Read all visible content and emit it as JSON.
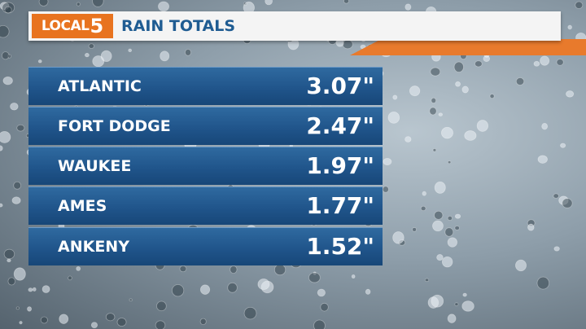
{
  "header": {
    "logo_text": "LOCAL",
    "logo_number": "5",
    "title": "RAIN TOTALS"
  },
  "table": {
    "rows": [
      [
        "ATLANTIC",
        "3.07\""
      ],
      [
        "FORT DODGE",
        "2.47\""
      ],
      [
        "WAUKEE",
        "1.97\""
      ],
      [
        "AMES",
        "1.77\""
      ],
      [
        "ANKENY",
        "1.52\""
      ]
    ]
  }
}
